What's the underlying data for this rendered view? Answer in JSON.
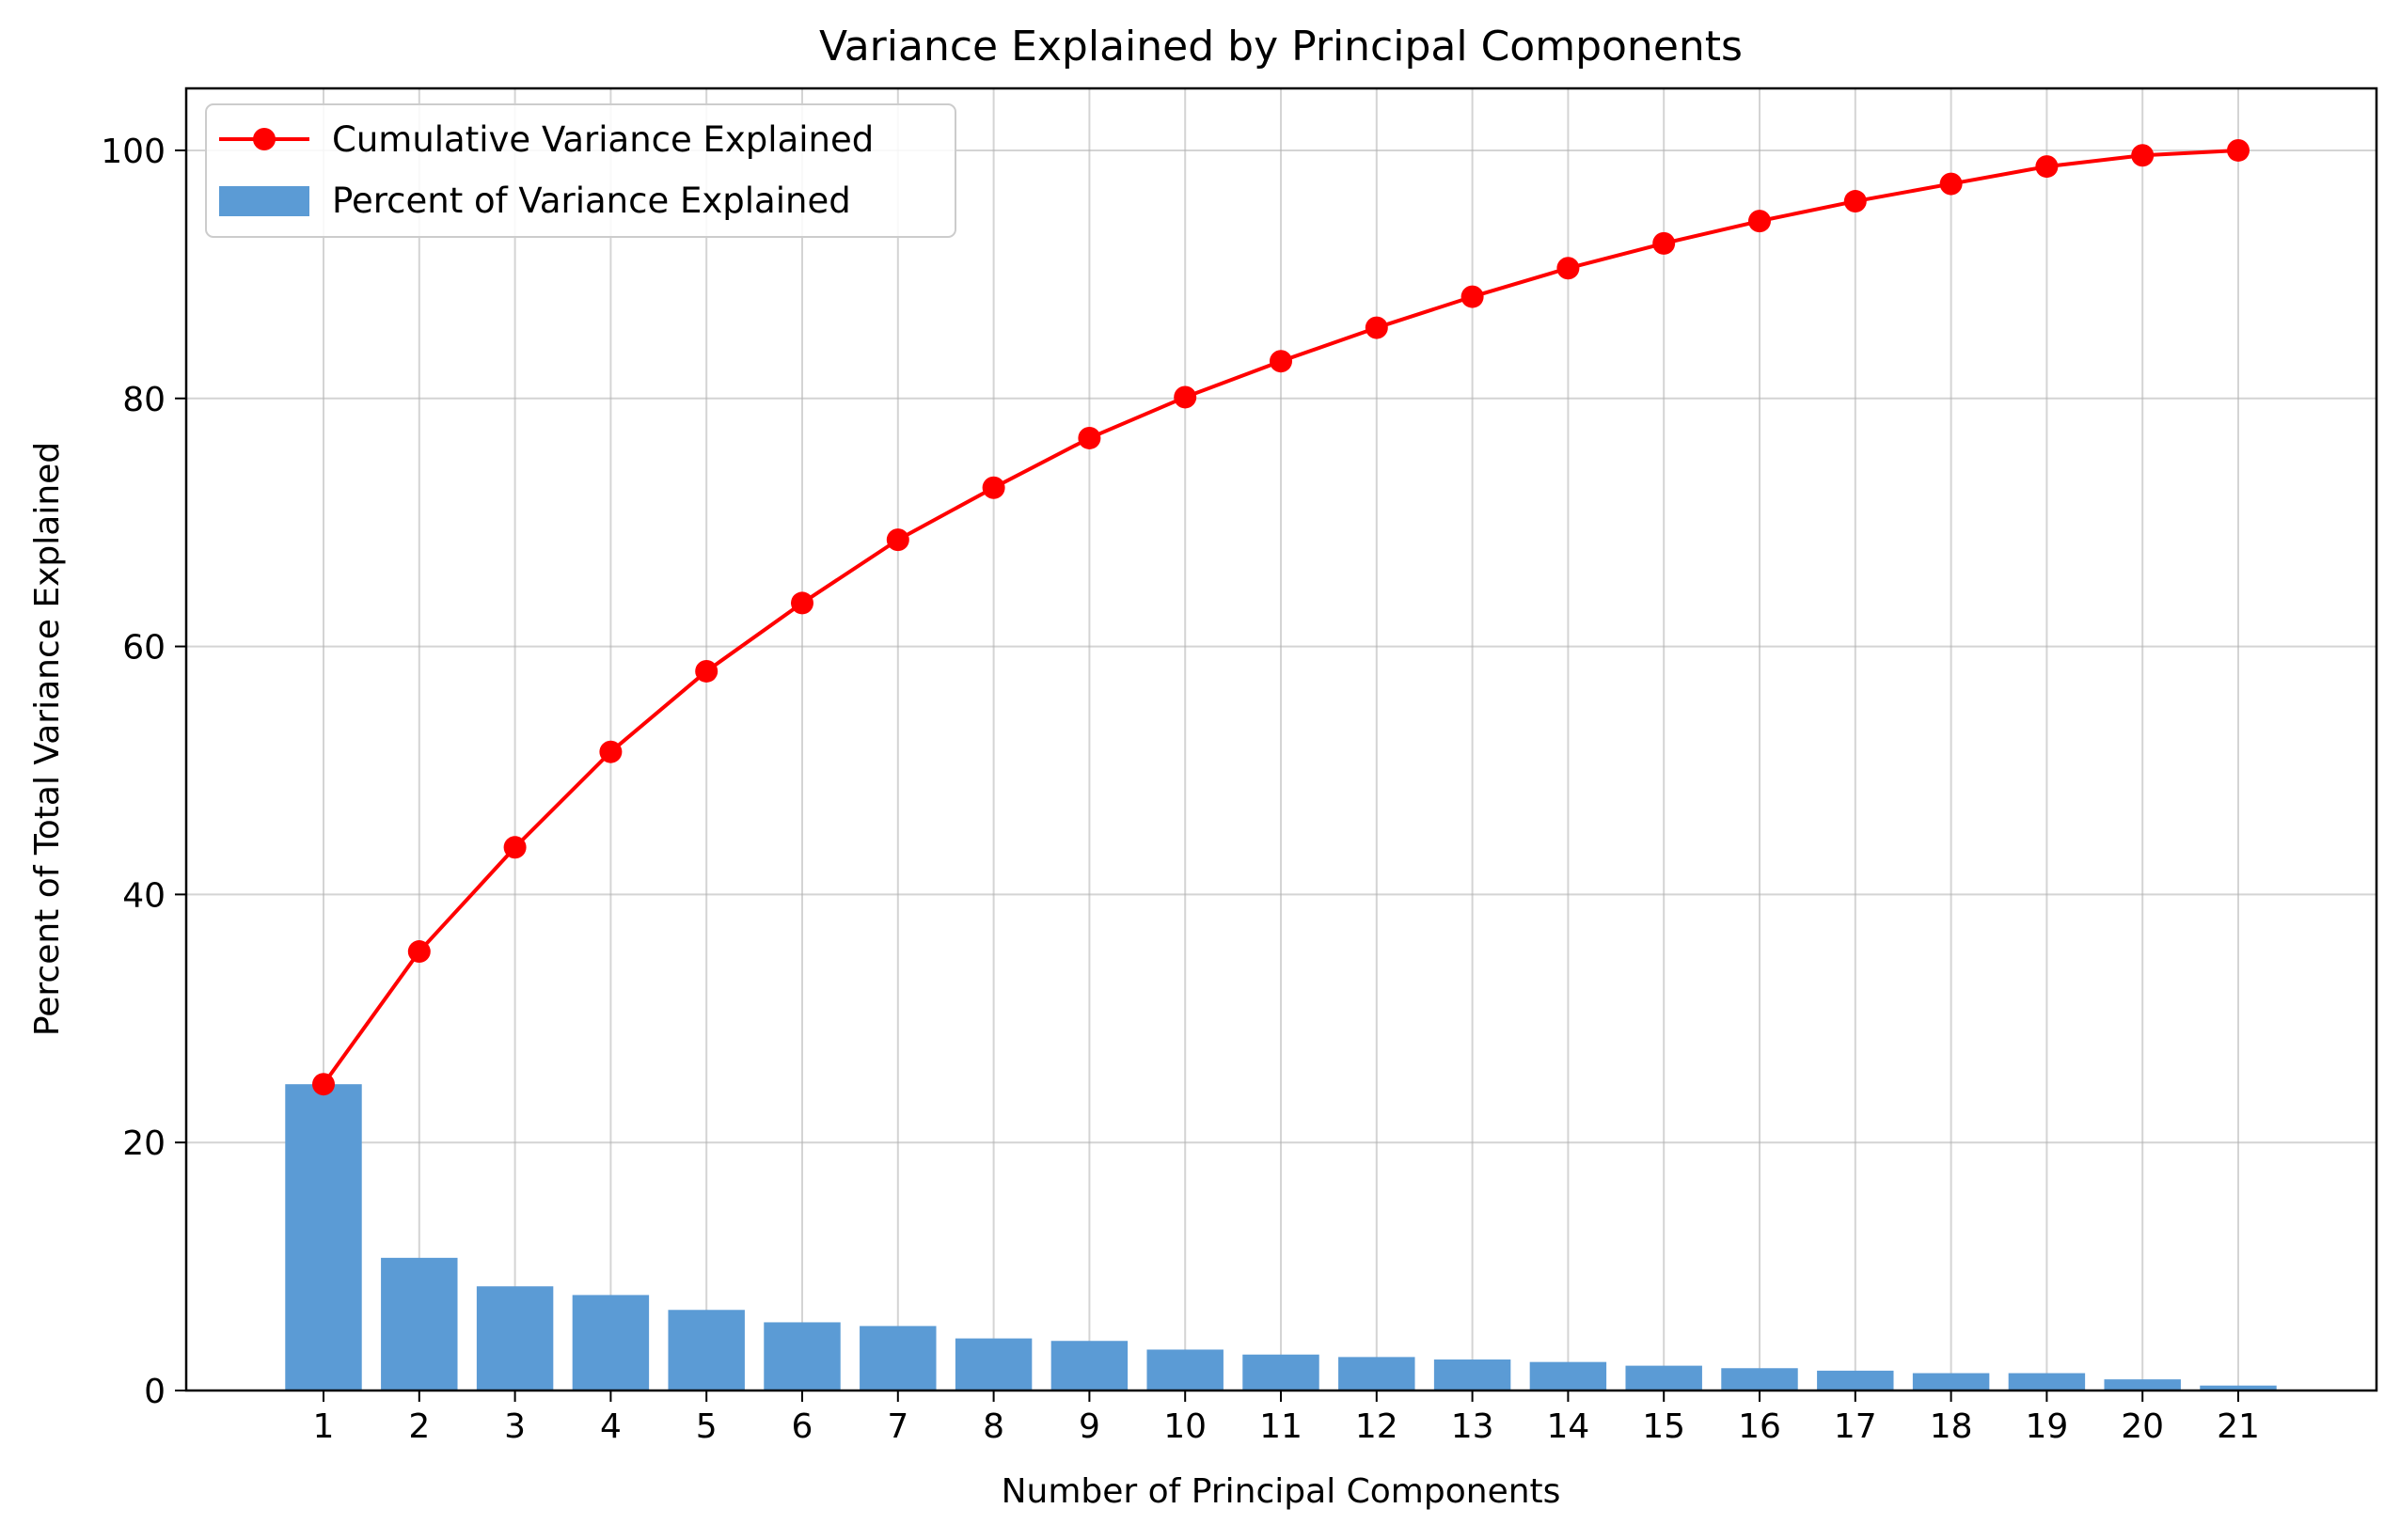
{
  "chart_data": {
    "type": "bar+line",
    "title": "Variance Explained by Principal Components",
    "xlabel": "Number of Principal Components",
    "ylabel": "Percent of Total Variance Explained",
    "categories": [
      "1",
      "2",
      "3",
      "4",
      "5",
      "6",
      "7",
      "8",
      "9",
      "10",
      "11",
      "12",
      "13",
      "14",
      "15",
      "16",
      "17",
      "18",
      "19",
      "20",
      "21"
    ],
    "ylim": [
      0,
      105
    ],
    "yticks": [
      0,
      20,
      40,
      60,
      80,
      100
    ],
    "grid": true,
    "legend_position": "top-left",
    "series": [
      {
        "name": "Cumulative Variance Explained",
        "kind": "line",
        "color": "#ff0000",
        "marker": "circle",
        "values": [
          24.7,
          35.4,
          43.8,
          51.5,
          58.0,
          63.5,
          68.6,
          72.8,
          76.8,
          80.1,
          83.0,
          85.7,
          88.2,
          90.5,
          92.5,
          94.3,
          95.9,
          97.3,
          98.7,
          99.6,
          100.0
        ]
      },
      {
        "name": "Percent of Variance Explained",
        "kind": "bar",
        "color": "#5b9bd5",
        "values": [
          24.7,
          10.7,
          8.4,
          7.7,
          6.5,
          5.5,
          5.2,
          4.2,
          4.0,
          3.3,
          2.9,
          2.7,
          2.5,
          2.3,
          2.0,
          1.8,
          1.6,
          1.4,
          1.4,
          0.9,
          0.4
        ]
      }
    ]
  }
}
